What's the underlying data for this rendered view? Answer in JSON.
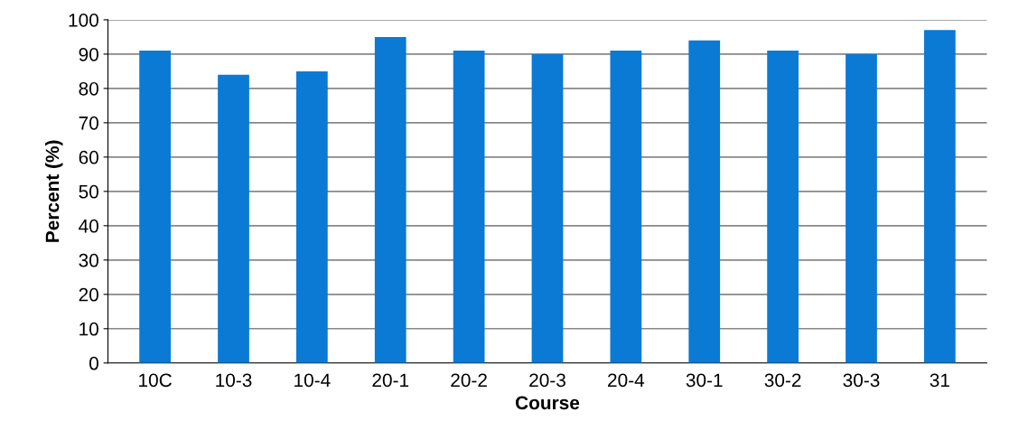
{
  "chart_data": {
    "type": "bar",
    "xlabel": "Course",
    "ylabel": "Percent (%)",
    "categories": [
      "10C",
      "10-3",
      "10-4",
      "20-1",
      "20-2",
      "20-3",
      "20-4",
      "30-1",
      "30-2",
      "30-3",
      "31"
    ],
    "values": [
      91,
      84,
      85,
      95,
      91,
      90,
      91,
      94,
      91,
      90,
      97
    ],
    "color": "#0a7ad4",
    "ylim": [
      0,
      100
    ],
    "yticks": [
      0,
      10,
      20,
      30,
      40,
      50,
      60,
      70,
      80,
      90,
      100
    ],
    "grid": "y"
  }
}
